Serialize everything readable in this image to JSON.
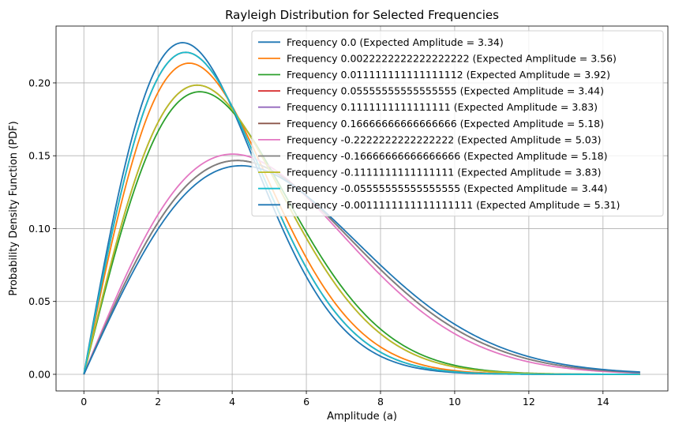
{
  "chart_data": {
    "type": "line",
    "title": "Rayleigh Distribution for Selected Frequencies",
    "xlabel": "Amplitude (a)",
    "ylabel": "Probability Density Function (PDF)",
    "xlim": [
      -0.75,
      15.75
    ],
    "ylim": [
      -0.0114,
      0.239
    ],
    "xticks": [
      0,
      2,
      4,
      6,
      8,
      10,
      12,
      14
    ],
    "xtick_labels": [
      "0",
      "2",
      "4",
      "6",
      "8",
      "10",
      "12",
      "14"
    ],
    "yticks": [
      0.0,
      0.05,
      0.1,
      0.15,
      0.2
    ],
    "ytick_labels": [
      "0.00",
      "0.05",
      "0.10",
      "0.15",
      "0.20"
    ],
    "grid": true,
    "legend_position": "top-right",
    "x_range": [
      0,
      15
    ],
    "curve": "rayleigh pdf f(a) = a/s^2 * exp(-a^2/(2 s^2)), s = expected_amplitude * sqrt(2/pi)",
    "series": [
      {
        "name": "Frequency 0.0 (Expected Amplitude = 3.34)",
        "expected_amplitude": 3.34,
        "color": "#1f77b4"
      },
      {
        "name": "Frequency 0.0022222222222222222 (Expected Amplitude = 3.56)",
        "expected_amplitude": 3.56,
        "color": "#ff7f0e"
      },
      {
        "name": "Frequency 0.011111111111111112 (Expected Amplitude = 3.92)",
        "expected_amplitude": 3.92,
        "color": "#2ca02c"
      },
      {
        "name": "Frequency 0.05555555555555555 (Expected Amplitude = 3.44)",
        "expected_amplitude": 3.44,
        "color": "#d62728"
      },
      {
        "name": "Frequency 0.1111111111111111 (Expected Amplitude = 3.83)",
        "expected_amplitude": 3.83,
        "color": "#9467bd"
      },
      {
        "name": "Frequency 0.16666666666666666 (Expected Amplitude = 5.18)",
        "expected_amplitude": 5.18,
        "color": "#8c564b"
      },
      {
        "name": "Frequency -0.2222222222222222 (Expected Amplitude = 5.03)",
        "expected_amplitude": 5.03,
        "color": "#e377c2"
      },
      {
        "name": "Frequency -0.16666666666666666 (Expected Amplitude = 5.18)",
        "expected_amplitude": 5.18,
        "color": "#7f7f7f"
      },
      {
        "name": "Frequency -0.1111111111111111 (Expected Amplitude = 3.83)",
        "expected_amplitude": 3.83,
        "color": "#bcbd22"
      },
      {
        "name": "Frequency -0.05555555555555555 (Expected Amplitude = 3.44)",
        "expected_amplitude": 3.44,
        "color": "#17becf"
      },
      {
        "name": "Frequency -0.0011111111111111111 (Expected Amplitude = 5.31)",
        "expected_amplitude": 5.31,
        "color": "#1f77b4"
      }
    ]
  }
}
